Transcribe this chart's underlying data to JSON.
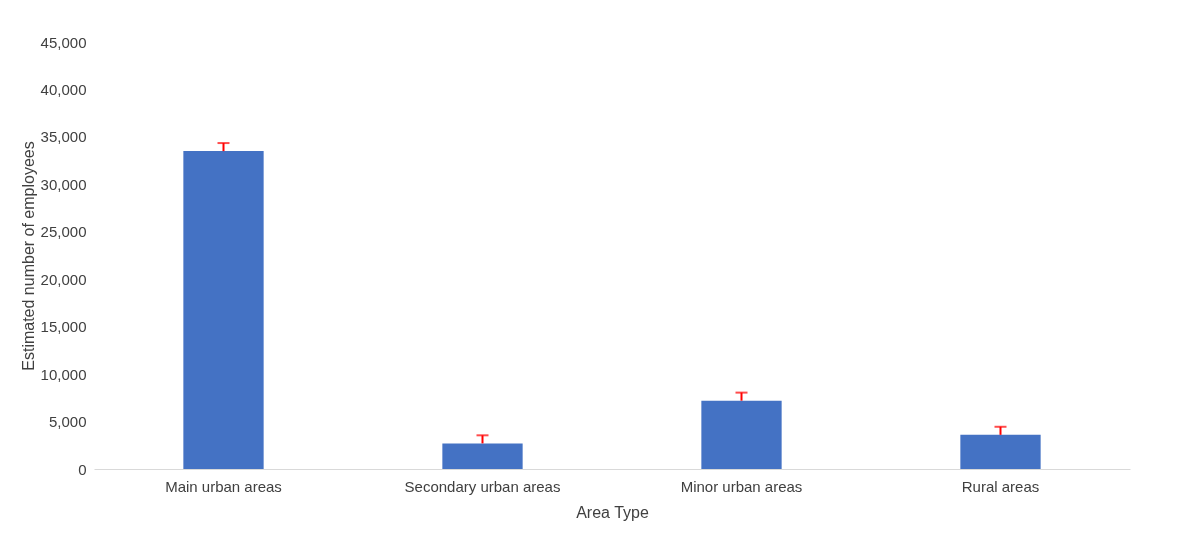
{
  "chart_data": {
    "type": "bar",
    "xlabel": "Area Type",
    "ylabel": "Estimated number of employees",
    "categories": [
      "Main urban areas",
      "Secondary urban areas",
      "Minor urban areas",
      "Rural areas"
    ],
    "values": [
      33500,
      2700,
      7200,
      3600
    ],
    "errors": [
      [
        33500,
        34350
      ],
      [
        2700,
        3550
      ],
      [
        7200,
        8050
      ],
      [
        3600,
        4450
      ]
    ],
    "color": "#4472c4",
    "ylim": [
      0,
      45000
    ],
    "yticks": [
      0,
      {
        "value": 5000,
        "label": "5,000"
      },
      {
        "value": 10000,
        "label": "10,000"
      },
      {
        "value": 15000,
        "label": "15,000"
      },
      {
        "value": 20000,
        "label": "20,000"
      },
      {
        "value": 25000,
        "label": "25,000"
      },
      {
        "value": 30000,
        "label": "30,000"
      },
      {
        "value": 35000,
        "label": "35,000"
      },
      {
        "value": 40000,
        "label": "40,000"
      },
      {
        "value": 45000,
        "label": "45,000"
      }
    ],
    "grid": false
  }
}
